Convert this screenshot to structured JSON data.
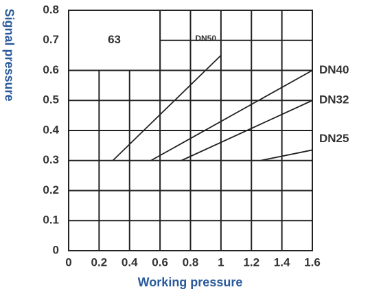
{
  "chart_data": {
    "type": "line",
    "x_label": "Working pressure",
    "y_label": "Signal pressure",
    "region_label": "63",
    "series": [
      {
        "name": "DN50",
        "color": "#222222",
        "x": [
          0.29,
          1.0
        ],
        "values": [
          0.3,
          0.65
        ]
      },
      {
        "name": "DN40",
        "color": "#222222",
        "x": [
          0.54,
          1.6
        ],
        "values": [
          0.3,
          0.6
        ]
      },
      {
        "name": "DN32",
        "color": "#222222",
        "x": [
          0.74,
          1.6
        ],
        "values": [
          0.3,
          0.5
        ]
      },
      {
        "name": "DN25",
        "color": "#222222",
        "x": [
          1.26,
          1.6
        ],
        "values": [
          0.3,
          0.335
        ]
      }
    ],
    "xlim": [
      0,
      1.6
    ],
    "xticks": [
      0,
      0.2,
      0.4,
      0.6,
      0.8,
      1.0,
      1.2,
      1.4,
      1.6
    ],
    "ylim": [
      0,
      0.8
    ],
    "yticks": [
      0,
      0.1,
      0.2,
      0.3,
      0.4,
      0.5,
      0.6,
      0.7,
      0.8
    ],
    "grid": true
  }
}
